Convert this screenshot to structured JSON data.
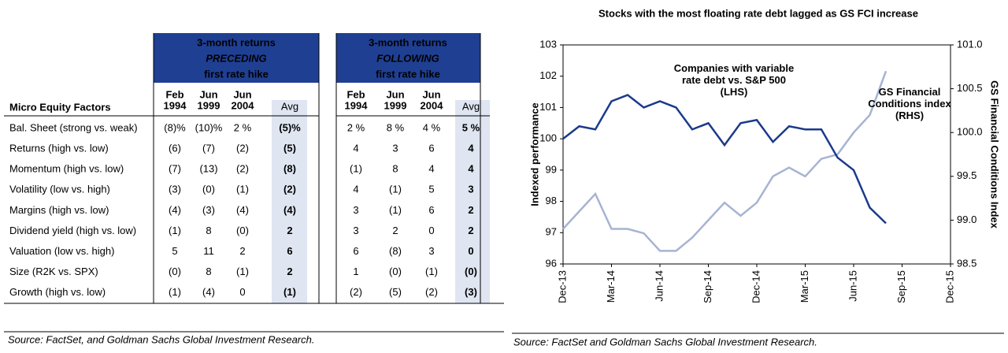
{
  "table": {
    "groups": [
      {
        "lines": [
          "3-month returns",
          "PRECEDING",
          "first rate hike"
        ]
      },
      {
        "lines": [
          "3-month returns",
          "FOLLOWING",
          "first rate hike"
        ]
      }
    ],
    "row_header": "Micro Equity Factors",
    "columns": [
      [
        "Feb",
        "1994"
      ],
      [
        "Jun",
        "1999"
      ],
      [
        "Jun",
        "2004"
      ],
      [
        "Avg"
      ],
      [
        "Feb",
        "1994"
      ],
      [
        "Jun",
        "1999"
      ],
      [
        "Jun",
        "2004"
      ],
      [
        "Avg"
      ]
    ],
    "rows": [
      [
        "Bal. Sheet (strong vs. weak)",
        "(8)%",
        "(10)%",
        "2 %",
        "(5)%",
        "2 %",
        "8 %",
        "4 %",
        "5 %"
      ],
      [
        "Returns (high vs. low)",
        "(6)",
        "(7)",
        "(2)",
        "(5)",
        "4",
        "3",
        "6",
        "4"
      ],
      [
        "Momentum (high vs. low)",
        "(7)",
        "(13)",
        "(2)",
        "(8)",
        "(1)",
        "8",
        "4",
        "4"
      ],
      [
        "Volatility (low vs. high)",
        "(3)",
        "(0)",
        "(1)",
        "(2)",
        "4",
        "(1)",
        "5",
        "3"
      ],
      [
        "Margins (high vs. low)",
        "(4)",
        "(3)",
        "(4)",
        "(4)",
        "3",
        "(1)",
        "6",
        "2"
      ],
      [
        "Dividend yield (high vs. low)",
        "(1)",
        "8",
        "(0)",
        "2",
        "3",
        "2",
        "0",
        "2"
      ],
      [
        "Valuation (low vs. high)",
        "5",
        "11",
        "2",
        "6",
        "6",
        "(8)",
        "3",
        "0"
      ],
      [
        "Size (R2K vs. SPX)",
        "(0)",
        "8",
        "(1)",
        "2",
        "1",
        "(0)",
        "(1)",
        "(0)"
      ],
      [
        "Growth (high vs. low)",
        "(1)",
        "(4)",
        "0",
        "(1)",
        "(2)",
        "(5)",
        "(2)",
        "(3)"
      ]
    ],
    "source": "Source: FactSet, and Goldman Sachs Global Investment Research."
  },
  "chart_data": {
    "type": "line",
    "title": "Stocks with the most floating rate debt lagged as GS FCI increase",
    "ylabel": "Indexed performance",
    "y2label": "GS Financial Conditions Index",
    "x": [
      "Dec-13",
      "Jan-14",
      "Feb-14",
      "Mar-14",
      "Apr-14",
      "May-14",
      "Jun-14",
      "Jul-14",
      "Aug-14",
      "Sep-14",
      "Oct-14",
      "Nov-14",
      "Dec-14",
      "Jan-15",
      "Feb-15",
      "Mar-15",
      "Apr-15",
      "May-15",
      "Jun-15",
      "Jul-15",
      "Aug-15"
    ],
    "xlim": [
      "Dec-13",
      "Dec-15"
    ],
    "xticks": [
      "Dec-13",
      "Mar-14",
      "Jun-14",
      "Sep-14",
      "Dec-14",
      "Mar-15",
      "Jun-15",
      "Sep-15",
      "Dec-15"
    ],
    "ylim": [
      96,
      103
    ],
    "yticks": [
      96,
      97,
      98,
      99,
      100,
      101,
      102,
      103
    ],
    "y2lim": [
      98.5,
      101
    ],
    "y2ticks": [
      98.5,
      {
        "value": 99,
        "label": "99.0"
      },
      99.5,
      {
        "value": 100,
        "label": "100.0"
      },
      100.5,
      {
        "value": 101,
        "label": "101.0"
      }
    ],
    "series": [
      {
        "name": "Companies with variable rate debt vs. S&P 500 (LHS)",
        "color": "#1b3a8c",
        "values": [
          100.0,
          100.4,
          100.3,
          101.2,
          101.4,
          101.0,
          101.2,
          101.0,
          100.3,
          100.5,
          99.8,
          100.5,
          100.6,
          99.9,
          100.4,
          100.3,
          100.3,
          99.4,
          99.0,
          97.8,
          97.3
        ]
      },
      {
        "name": "GS Financial Conditions index (RHS)",
        "color": "#a7b3d3",
        "axis": "y2",
        "values": [
          98.9,
          99.1,
          99.3,
          98.9,
          98.9,
          98.85,
          98.65,
          98.65,
          98.8,
          99.0,
          99.2,
          99.05,
          99.2,
          99.5,
          99.6,
          99.5,
          99.7,
          99.75,
          100.0,
          100.2,
          100.7
        ]
      }
    ],
    "source": "Source: FactSet and Goldman Sachs Global Investment Research."
  }
}
